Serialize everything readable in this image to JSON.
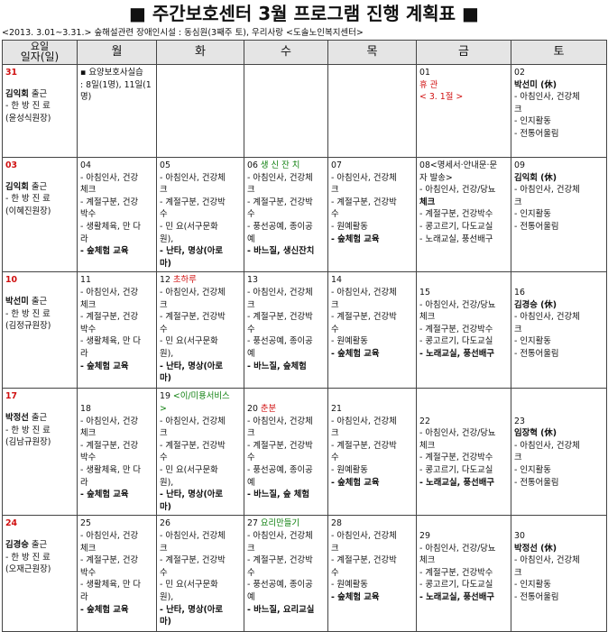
{
  "title": "■ 주간보호센터 3월 프로그램 진행 계획표 ■",
  "subtitle": "<2013. 3.01~3.31.> 숲해설관련 장애인시설 : 동심원(3째주 토), 우리사랑 <도솔노인복지센터>",
  "header": {
    "corner_top": "요일",
    "corner_bottom": "일자(일)",
    "days": [
      "월",
      "화",
      "수",
      "목",
      "금",
      "토"
    ]
  },
  "weeks": [
    {
      "sun": {
        "date": "31",
        "name": "김익회",
        "shift": "출근",
        "role": "- 한 방 진 료",
        "doctor": "(윤성식원장)"
      },
      "mon": {
        "lines": [
          {
            "t": "▪ 요양보호사실습"
          },
          {
            "t": ": 8일(1명), 11일(1"
          },
          {
            "t": "명)"
          }
        ]
      },
      "tue": {
        "lines": []
      },
      "wed": {
        "lines": []
      },
      "thu": {
        "lines": []
      },
      "fri": {
        "lines": [
          {
            "t": "01"
          },
          {
            "t": "휴 관",
            "c": "red"
          },
          {
            "t": "< 3. 1절 >",
            "c": "red"
          }
        ]
      },
      "sat": {
        "lines": [
          {
            "t": "02"
          },
          {
            "t": "박선미 (休)",
            "b": true
          },
          {
            "t": "- 아침인사, 건강체"
          },
          {
            "t": "크"
          },
          {
            "t": "- 인지활동"
          },
          {
            "t": "- 전통어울림"
          }
        ]
      }
    },
    {
      "sun": {
        "date": "03",
        "name": "김익회",
        "shift": "출근",
        "role": "- 한 방 진 료",
        "doctor": "(이혜진원장)"
      },
      "mon": {
        "lines": [
          {
            "t": "04"
          },
          {
            "t": "- 아침인사, 건강"
          },
          {
            "t": "체크"
          },
          {
            "t": "- 계절구분, 건강"
          },
          {
            "t": "박수"
          },
          {
            "t": "- 생활체육, 만 다"
          },
          {
            "t": "라"
          },
          {
            "t": "- 숲체험 교육",
            "b": true
          }
        ]
      },
      "tue": {
        "lines": [
          {
            "t": "05"
          },
          {
            "t": "- 아침인사, 건강체"
          },
          {
            "t": "크"
          },
          {
            "t": "- 계절구분, 건강박"
          },
          {
            "t": "수"
          },
          {
            "t": "- 민 요(서구문화"
          },
          {
            "t": "원),"
          },
          {
            "t": "- 난타, 명상(아로",
            "b": true
          },
          {
            "t": "마)",
            "b": true
          }
        ]
      },
      "wed": {
        "lines": [
          {
            "t": "06 생 신 잔 치",
            "c": "green",
            "pre": "06 ",
            "rest": "생 신 잔 치"
          },
          {
            "t": "- 아침인사, 건강체"
          },
          {
            "t": "크"
          },
          {
            "t": "- 계절구분, 건강박"
          },
          {
            "t": "수"
          },
          {
            "t": "- 풍선공예, 종이공"
          },
          {
            "t": "예"
          },
          {
            "t": "- 바느질, 생신잔치",
            "b": true
          }
        ]
      },
      "thu": {
        "lines": [
          {
            "t": "07"
          },
          {
            "t": "- 아침인사, 건강체"
          },
          {
            "t": "크"
          },
          {
            "t": "- 계절구분, 건강박"
          },
          {
            "t": "수"
          },
          {
            "t": "- 원예활동"
          },
          {
            "t": "- 숲체험 교육",
            "b": true
          }
        ]
      },
      "fri": {
        "lines": [
          {
            "t": "08<명세서·안내문·문"
          },
          {
            "t": "자 발송>"
          },
          {
            "t": "- 아침인사, 건강/당뇨"
          },
          {
            "t": "체크",
            "b": true
          },
          {
            "t": "- 계절구분, 건강박수"
          },
          {
            "t": "- 콩고르기, 다도교실"
          },
          {
            "t": "- 노래교실, 풍선배구"
          }
        ]
      },
      "sat": {
        "lines": [
          {
            "t": "09"
          },
          {
            "t": "김익회 (休)",
            "b": true
          },
          {
            "t": "- 아침인사, 건강체"
          },
          {
            "t": "크"
          },
          {
            "t": "- 인지활동"
          },
          {
            "t": "- 전통어울림"
          }
        ]
      }
    },
    {
      "sun": {
        "date": "10",
        "name": "박선미",
        "shift": "출근",
        "role": "- 한 방 진 료",
        "doctor": "(김정규원장)"
      },
      "mon": {
        "lines": [
          {
            "t": "11"
          },
          {
            "t": "- 아침인사, 건강"
          },
          {
            "t": "체크"
          },
          {
            "t": "- 계절구분, 건강"
          },
          {
            "t": "박수"
          },
          {
            "t": "- 생활체육, 만 다"
          },
          {
            "t": "라"
          },
          {
            "t": "- 숲체험 교육",
            "b": true
          }
        ]
      },
      "tue": {
        "lines": [
          {
            "t": "12 초하루",
            "pre": "12 ",
            "rest": "초하루",
            "c": "red"
          },
          {
            "t": "- 아침인사, 건강체"
          },
          {
            "t": "크"
          },
          {
            "t": "- 계절구분, 건강박"
          },
          {
            "t": "수"
          },
          {
            "t": "- 민 요(서구문화"
          },
          {
            "t": "원),"
          },
          {
            "t": "- 난타, 명상(아로",
            "b": true
          },
          {
            "t": "마)",
            "b": true
          }
        ]
      },
      "wed": {
        "lines": [
          {
            "t": "13"
          },
          {
            "t": "- 아침인사, 건강체"
          },
          {
            "t": "크"
          },
          {
            "t": "- 계절구분, 건강박"
          },
          {
            "t": "수"
          },
          {
            "t": "- 풍선공예, 종이공"
          },
          {
            "t": "예"
          },
          {
            "t": "- 바느질, 숲체험",
            "b": true
          }
        ]
      },
      "thu": {
        "lines": [
          {
            "t": "14"
          },
          {
            "t": "- 아침인사, 건강체"
          },
          {
            "t": "크"
          },
          {
            "t": "- 계절구분, 건강박"
          },
          {
            "t": "수"
          },
          {
            "t": "- 원예활동"
          },
          {
            "t": "- 숲체험 교육",
            "b": true
          }
        ]
      },
      "fri": {
        "lines": [
          {
            "t": ""
          },
          {
            "t": "15"
          },
          {
            "t": "- 아침인사, 건강/당뇨"
          },
          {
            "t": "체크"
          },
          {
            "t": "- 계절구분, 건강박수"
          },
          {
            "t": "- 콩고르기, 다도교실"
          },
          {
            "t": "- 노래교실, 풍선배구",
            "b": true
          }
        ]
      },
      "sat": {
        "lines": [
          {
            "t": ""
          },
          {
            "t": "16"
          },
          {
            "t": "김경승 (休)",
            "b": true
          },
          {
            "t": "- 아침인사, 건강체"
          },
          {
            "t": "크"
          },
          {
            "t": "- 인지활동"
          },
          {
            "t": "- 전통어울림"
          }
        ]
      }
    },
    {
      "sun": {
        "date": "17",
        "name": "박정선",
        "shift": "출근",
        "role": "- 한 방 진 료",
        "doctor": "(김남규원장)"
      },
      "mon": {
        "lines": [
          {
            "t": ""
          },
          {
            "t": "18"
          },
          {
            "t": "- 아침인사, 건강"
          },
          {
            "t": "체크"
          },
          {
            "t": "- 계절구분, 건강"
          },
          {
            "t": "박수"
          },
          {
            "t": "- 생활체육, 만 다"
          },
          {
            "t": "라"
          },
          {
            "t": "- 숲체험 교육",
            "b": true
          }
        ]
      },
      "tue": {
        "lines": [
          {
            "t": "19 <이/미용서비스",
            "pre": "19 ",
            "rest": "<이/미용서비스",
            "c": "green"
          },
          {
            "t": ">",
            "c": "green"
          },
          {
            "t": "- 아침인사, 건강체"
          },
          {
            "t": "크"
          },
          {
            "t": "- 계절구분, 건강박"
          },
          {
            "t": "수"
          },
          {
            "t": "- 민 요(서구문화"
          },
          {
            "t": "원),"
          },
          {
            "t": "- 난타, 명상(아로",
            "b": true
          },
          {
            "t": "마)",
            "b": true
          }
        ]
      },
      "wed": {
        "lines": [
          {
            "t": ""
          },
          {
            "t": "20 춘분",
            "pre": "20 ",
            "rest": "춘분",
            "c": "red"
          },
          {
            "t": "- 아침인사, 건강체"
          },
          {
            "t": "크"
          },
          {
            "t": "- 계절구분, 건강박"
          },
          {
            "t": "수"
          },
          {
            "t": "- 풍선공예, 종이공"
          },
          {
            "t": "예"
          },
          {
            "t": "- 바느질, 숲 체험",
            "b": true
          }
        ]
      },
      "thu": {
        "lines": [
          {
            "t": ""
          },
          {
            "t": "21"
          },
          {
            "t": "- 아침인사, 건강체"
          },
          {
            "t": "크"
          },
          {
            "t": "- 계절구분, 건강박"
          },
          {
            "t": "수"
          },
          {
            "t": "- 원예활동"
          },
          {
            "t": "- 숲체험 교육",
            "b": true
          }
        ]
      },
      "fri": {
        "lines": [
          {
            "t": ""
          },
          {
            "t": ""
          },
          {
            "t": "22"
          },
          {
            "t": "- 아침인사, 건강/당뇨"
          },
          {
            "t": "체크"
          },
          {
            "t": "- 계절구분, 건강박수"
          },
          {
            "t": "- 콩고르기, 다도교실"
          },
          {
            "t": "- 노래교실, 풍선배구",
            "b": true
          }
        ]
      },
      "sat": {
        "lines": [
          {
            "t": ""
          },
          {
            "t": ""
          },
          {
            "t": "23"
          },
          {
            "t": "임장혁 (休)",
            "b": true
          },
          {
            "t": "- 아침인사, 건강체"
          },
          {
            "t": "크"
          },
          {
            "t": "- 인지활동"
          },
          {
            "t": "- 전통어울림"
          }
        ]
      }
    },
    {
      "sun": {
        "date": "24",
        "name": "김경승",
        "shift": "출근",
        "role": "- 한 방 진 료",
        "doctor": "(오재근원장)"
      },
      "mon": {
        "lines": [
          {
            "t": "25"
          },
          {
            "t": "- 아침인사, 건강"
          },
          {
            "t": "체크"
          },
          {
            "t": "- 계절구분, 건강"
          },
          {
            "t": "박수"
          },
          {
            "t": "- 생활체육, 만 다"
          },
          {
            "t": "라"
          },
          {
            "t": "- 숲체험 교육",
            "b": true
          }
        ]
      },
      "tue": {
        "lines": [
          {
            "t": "26"
          },
          {
            "t": "- 아침인사, 건강체"
          },
          {
            "t": "크"
          },
          {
            "t": "- 계절구분, 건강박"
          },
          {
            "t": "수"
          },
          {
            "t": "- 민 요(서구문화"
          },
          {
            "t": "원),"
          },
          {
            "t": "- 난타, 명상(아로",
            "b": true
          },
          {
            "t": "마)",
            "b": true
          }
        ]
      },
      "wed": {
        "lines": [
          {
            "t": "27 요리만들기",
            "pre": "27 ",
            "rest": "요리만들기",
            "c": "green"
          },
          {
            "t": "- 아침인사, 건강체"
          },
          {
            "t": "크"
          },
          {
            "t": "- 계절구분, 건강박"
          },
          {
            "t": "수"
          },
          {
            "t": "- 풍선공예, 종이공"
          },
          {
            "t": "예"
          },
          {
            "t": "- 바느질, 요리교실",
            "b": true
          }
        ]
      },
      "thu": {
        "lines": [
          {
            "t": "28"
          },
          {
            "t": "- 아침인사, 건강체"
          },
          {
            "t": "크"
          },
          {
            "t": "- 계절구분, 건강박"
          },
          {
            "t": "수"
          },
          {
            "t": "- 원예활동"
          },
          {
            "t": "- 숲체험 교육",
            "b": true
          }
        ]
      },
      "fri": {
        "lines": [
          {
            "t": ""
          },
          {
            "t": "29"
          },
          {
            "t": "- 아침인사, 건강/당뇨"
          },
          {
            "t": "체크"
          },
          {
            "t": "- 계절구분, 건강박수"
          },
          {
            "t": "- 콩고르기, 다도교실"
          },
          {
            "t": "- 노래교실, 풍선배구",
            "b": true
          }
        ]
      },
      "sat": {
        "lines": [
          {
            "t": ""
          },
          {
            "t": "30"
          },
          {
            "t": "박정선 (休)",
            "b": true
          },
          {
            "t": "- 아침인사, 건강체"
          },
          {
            "t": "크"
          },
          {
            "t": "- 인지활동"
          },
          {
            "t": "- 전통어울림"
          }
        ]
      }
    }
  ]
}
